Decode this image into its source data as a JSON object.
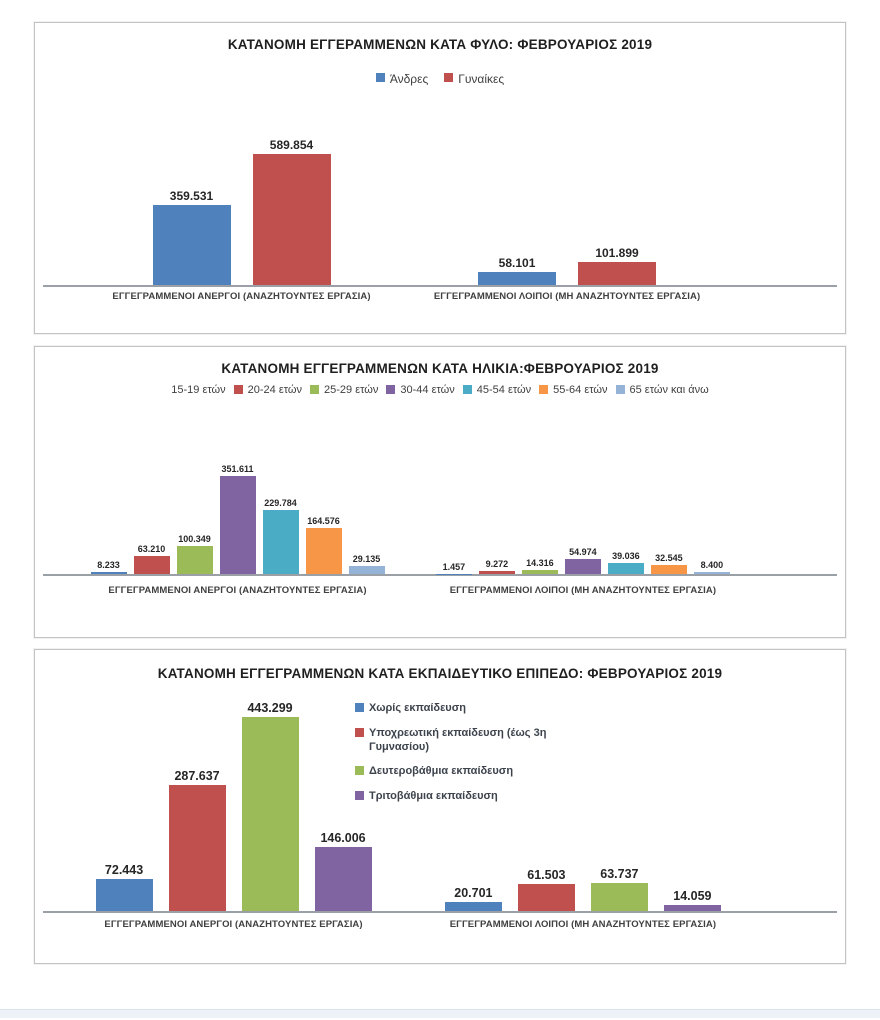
{
  "chart_data": [
    {
      "type": "bar",
      "title": "ΚΑΤΑΝΟΜΗ ΕΓΓΕΡΑΜΜΕΝΩΝ ΚΑΤΑ ΦΥΛΟ: ΦΕΒΡΟΥΑΡΙΟΣ 2019",
      "legend_position": "top",
      "grid": false,
      "y_axis_visible": false,
      "data_labels": true,
      "ylim": [
        0,
        675000
      ],
      "categories": [
        "ΕΓΓΕΓΡΑΜΜΕΝΟΙ ΑΝΕΡΓΟΙ (ΑΝΑΖΗΤΟΥΝΤΕΣ ΕΡΓΑΣΙΑ)",
        "ΕΓΓΕΓΡΑΜΜΕΝΟΙ ΛΟΙΠΟΙ (ΜΗ ΑΝΑΖΗΤΟΥΝΤΕΣ ΕΡΓΑΣΙΑ)"
      ],
      "series": [
        {
          "name": "Άνδρες",
          "color": "#4F81BD",
          "swatch": true,
          "values": [
            359531,
            58101
          ],
          "labels": [
            "359.531",
            "58.101"
          ]
        },
        {
          "name": "Γυναίκες",
          "color": "#C0504D",
          "swatch": true,
          "values": [
            589854,
            101899
          ],
          "labels": [
            "589.854",
            "101.899"
          ]
        }
      ]
    },
    {
      "type": "bar",
      "title": "ΚΑΤΑΝΟΜΗ ΕΓΓΕΓΡΑΜΜΕΝΩΝ ΚΑΤΑ ΗΛΙΚΙΑ:ΦΕΒΡΟΥΑΡΙΟΣ 2019",
      "legend_position": "top",
      "grid": false,
      "y_axis_visible": false,
      "data_labels": true,
      "ylim": [
        0,
        394000
      ],
      "categories": [
        "ΕΓΓΕΓΡΑΜΜΕΝΟΙ ΑΝΕΡΓΟΙ (ΑΝΑΖΗΤΟΥΝΤΕΣ ΕΡΓΑΣΙΑ)",
        "ΕΓΓΕΓΡΑΜΜΕΝΟΙ ΛΟΙΠΟΙ (ΜΗ ΑΝΑΖΗΤΟΥΝΤΕΣ ΕΡΓΑΣΙΑ)"
      ],
      "series": [
        {
          "name": "15-19 ετών",
          "color": "#4F81BD",
          "swatch": false,
          "values": [
            8233,
            1457
          ],
          "labels": [
            "8.233",
            "1.457"
          ]
        },
        {
          "name": "20-24 ετών",
          "color": "#C0504D",
          "swatch": true,
          "values": [
            63210,
            9272
          ],
          "labels": [
            "63.210",
            "9.272"
          ]
        },
        {
          "name": "25-29 ετών",
          "color": "#9BBB59",
          "swatch": true,
          "values": [
            100349,
            14316
          ],
          "labels": [
            "100.349",
            "14.316"
          ]
        },
        {
          "name": "30-44 ετών",
          "color": "#8064A2",
          "swatch": true,
          "values": [
            351611,
            54974
          ],
          "labels": [
            "351.611",
            "54.974"
          ]
        },
        {
          "name": "45-54 ετών",
          "color": "#4BACC6",
          "swatch": true,
          "values": [
            229784,
            39036
          ],
          "labels": [
            "229.784",
            "39.036"
          ]
        },
        {
          "name": "55-64 ετών",
          "color": "#F79646",
          "swatch": true,
          "values": [
            164576,
            32545
          ],
          "labels": [
            "164.576",
            "32.545"
          ]
        },
        {
          "name": "65 ετών και άνω",
          "color": "#95B3D7",
          "swatch": true,
          "values": [
            29135,
            8400
          ],
          "labels": [
            "29.135",
            "8.400"
          ]
        }
      ]
    },
    {
      "type": "bar",
      "title": "ΚΑΤΑΝΟΜΗ ΕΓΓΕΓΡΑΜΜΕΝΩΝ ΚΑΤΑ ΕΚΠΑΙΔΕΥΤΙΚΟ ΕΠΙΠΕΔΟ: ΦΕΒΡΟΥΑΡΙΟΣ 2019",
      "legend_position": "right-column",
      "grid": false,
      "y_axis_visible": false,
      "data_labels": true,
      "ylim": [
        0,
        457000
      ],
      "categories": [
        "ΕΓΓΕΓΡΑΜΜΕΝΟΙ ΑΝΕΡΓΟΙ (ΑΝΑΖΗΤΟΥΝΤΕΣ ΕΡΓΑΣΙΑ)",
        "ΕΓΓΕΓΡΑΜΜΕΝΟΙ ΛΟΙΠΟΙ (ΜΗ ΑΝΑΖΗΤΟΥΝΤΕΣ ΕΡΓΑΣΙΑ)"
      ],
      "series": [
        {
          "name": "Χωρίς εκπαίδευση",
          "color": "#4F81BD",
          "swatch": true,
          "values": [
            72443,
            20701
          ],
          "labels": [
            "72.443",
            "20.701"
          ]
        },
        {
          "name": "Υποχρεωτική εκπαίδευση (έως 3η Γυμνασίου)",
          "color": "#C0504D",
          "swatch": true,
          "values": [
            287637,
            61503
          ],
          "labels": [
            "287.637",
            "61.503"
          ]
        },
        {
          "name": "Δευτεροβάθμια εκπαίδευση",
          "color": "#9BBB59",
          "swatch": true,
          "values": [
            443299,
            63737
          ],
          "labels": [
            "443.299",
            "63.737"
          ]
        },
        {
          "name": "Τριτοβάθμια εκπαίδευση",
          "color": "#8064A2",
          "swatch": true,
          "values": [
            146006,
            14059
          ],
          "labels": [
            "146.006",
            "14.059"
          ]
        }
      ]
    }
  ]
}
